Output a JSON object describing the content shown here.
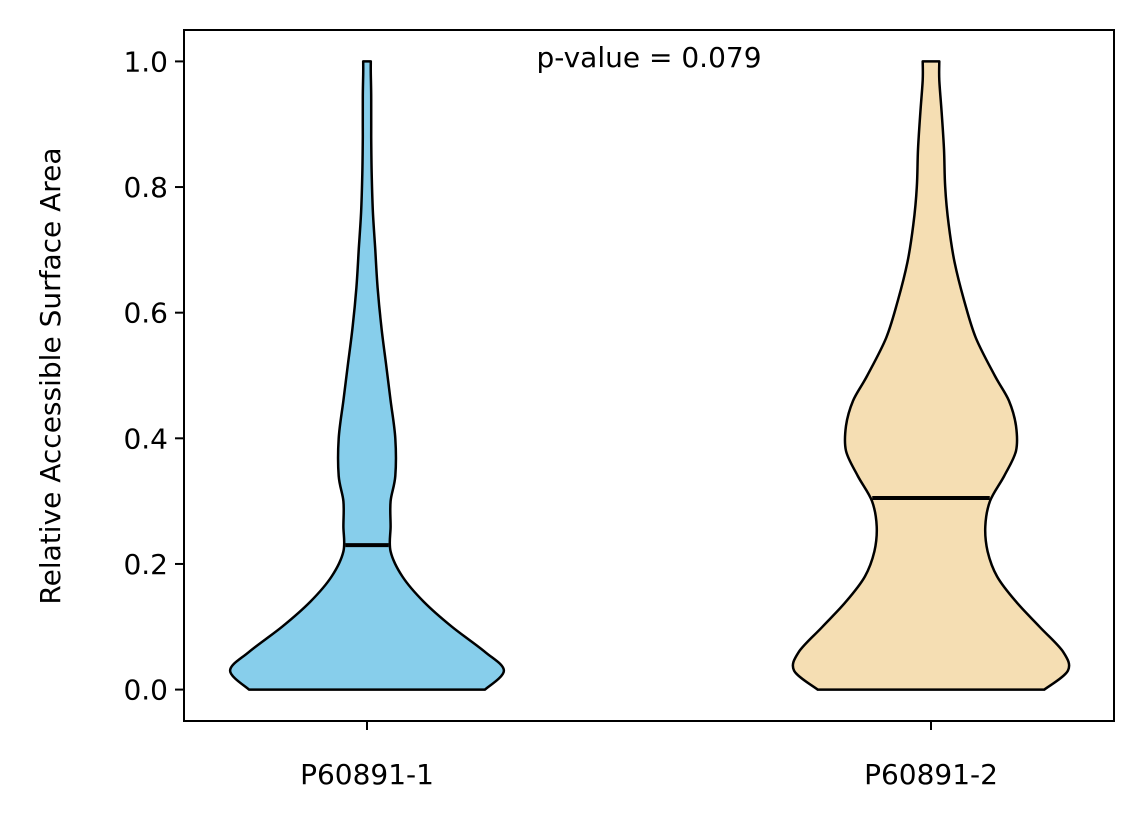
{
  "chart_data": {
    "type": "violin",
    "title": "p-value = 0.079",
    "xlabel": "",
    "ylabel": "Relative Accessible Surface Area",
    "ylim": [
      -0.05,
      1.05
    ],
    "yticks": [
      "0.0",
      "0.2",
      "0.4",
      "0.6",
      "0.8",
      "1.0"
    ],
    "grid": false,
    "categories": [
      "P60891-1",
      "P60891-2"
    ],
    "series": [
      {
        "category": "P60891-1",
        "color": "#87CEEB",
        "median": 0.23,
        "min": 0.0,
        "max": 1.0,
        "density_profile": [
          [
            0.0,
            0.5
          ],
          [
            0.03,
            0.58
          ],
          [
            0.06,
            0.5
          ],
          [
            0.1,
            0.36
          ],
          [
            0.14,
            0.24
          ],
          [
            0.18,
            0.15
          ],
          [
            0.22,
            0.1
          ],
          [
            0.26,
            0.1
          ],
          [
            0.3,
            0.1
          ],
          [
            0.34,
            0.12
          ],
          [
            0.4,
            0.12
          ],
          [
            0.46,
            0.1
          ],
          [
            0.52,
            0.08
          ],
          [
            0.58,
            0.06
          ],
          [
            0.64,
            0.045
          ],
          [
            0.7,
            0.035
          ],
          [
            0.76,
            0.025
          ],
          [
            0.82,
            0.02
          ],
          [
            0.88,
            0.018
          ],
          [
            0.94,
            0.018
          ],
          [
            0.98,
            0.016
          ],
          [
            1.0,
            0.016
          ]
        ]
      },
      {
        "category": "P60891-2",
        "color": "#F5DEB3",
        "median": 0.305,
        "min": 0.0,
        "max": 1.0,
        "density_profile": [
          [
            0.0,
            0.48
          ],
          [
            0.03,
            0.58
          ],
          [
            0.06,
            0.56
          ],
          [
            0.1,
            0.46
          ],
          [
            0.14,
            0.36
          ],
          [
            0.18,
            0.28
          ],
          [
            0.22,
            0.24
          ],
          [
            0.26,
            0.23
          ],
          [
            0.3,
            0.25
          ],
          [
            0.34,
            0.31
          ],
          [
            0.38,
            0.36
          ],
          [
            0.42,
            0.36
          ],
          [
            0.46,
            0.33
          ],
          [
            0.5,
            0.27
          ],
          [
            0.56,
            0.19
          ],
          [
            0.62,
            0.14
          ],
          [
            0.68,
            0.1
          ],
          [
            0.74,
            0.075
          ],
          [
            0.8,
            0.06
          ],
          [
            0.86,
            0.055
          ],
          [
            0.92,
            0.045
          ],
          [
            0.97,
            0.035
          ],
          [
            1.0,
            0.035
          ]
        ]
      }
    ]
  }
}
